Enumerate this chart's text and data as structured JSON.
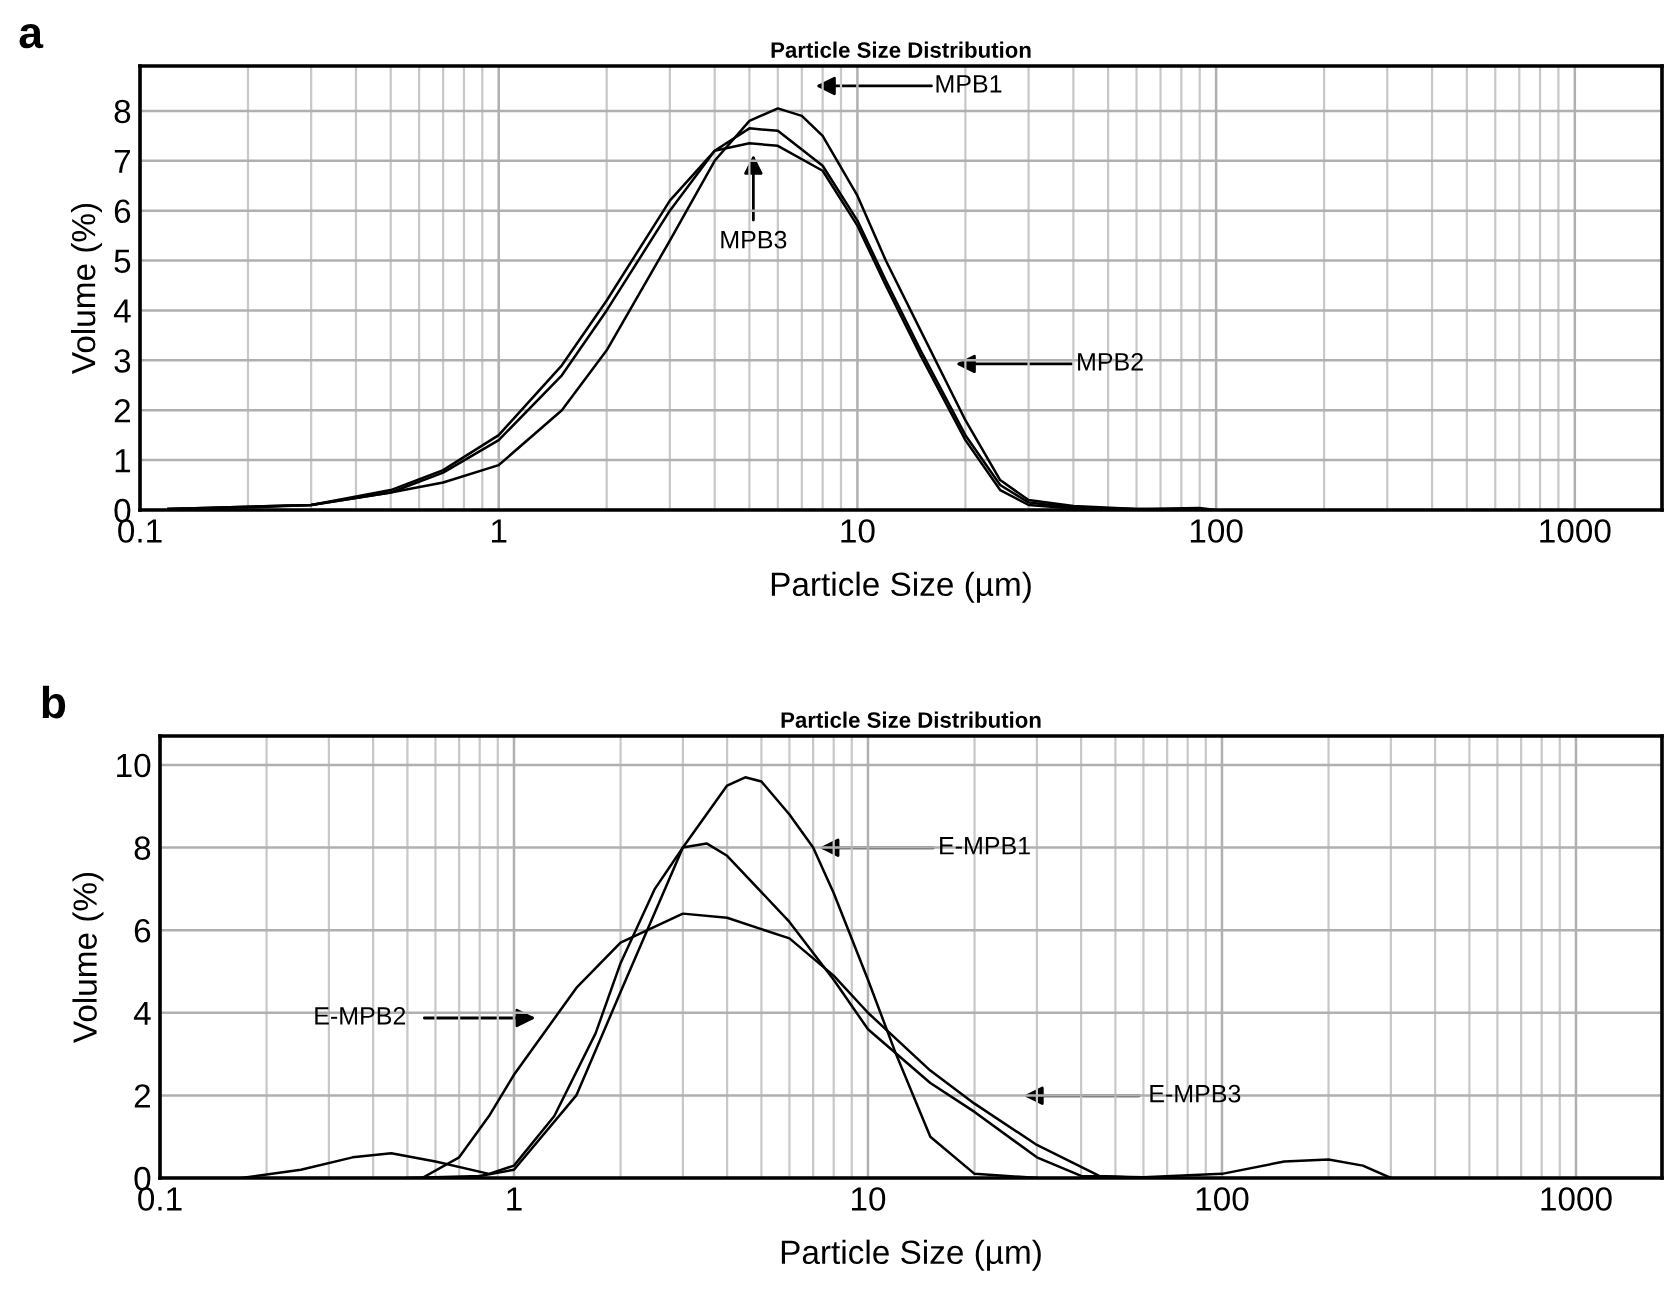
{
  "chart_data": [
    {
      "type": "line",
      "title": "Particle Size Distribution",
      "xlabel": "Particle Size (µm)",
      "ylabel": "Volume (%)",
      "log": "x",
      "grid": true,
      "xlim": [
        0.1,
        1750
      ],
      "xticks": [
        0.1,
        1,
        10,
        100,
        1000
      ],
      "ylim": [
        0,
        8.9
      ],
      "yticks": [
        0,
        1,
        2,
        3,
        4,
        5,
        6,
        7,
        8
      ],
      "series": [
        {
          "color": "#000000",
          "x": [
            0.12,
            0.2,
            0.3,
            0.5,
            0.7,
            1,
            1.5,
            2,
            3,
            4,
            5,
            6,
            7,
            8,
            10,
            12,
            15,
            20,
            25,
            30,
            40,
            60,
            90,
            100
          ],
          "values": [
            0.02,
            0.05,
            0.1,
            0.35,
            0.55,
            0.9,
            2.0,
            3.2,
            5.4,
            7.0,
            7.8,
            8.05,
            7.9,
            7.5,
            6.3,
            5.0,
            3.6,
            1.8,
            0.6,
            0.2,
            0.08,
            0.02,
            0.04,
            0.0
          ]
        },
        {
          "color": "#000000",
          "x": [
            0.12,
            0.3,
            0.5,
            0.7,
            1,
            1.5,
            2,
            3,
            4,
            5,
            6,
            8,
            10,
            12,
            15,
            20,
            25,
            30,
            40,
            60,
            90
          ],
          "values": [
            0.02,
            0.1,
            0.35,
            0.75,
            1.4,
            2.7,
            4.0,
            6.0,
            7.2,
            7.65,
            7.6,
            6.9,
            5.8,
            4.6,
            3.2,
            1.5,
            0.5,
            0.15,
            0.05,
            0.02,
            0.0
          ]
        },
        {
          "color": "#000000",
          "x": [
            0.12,
            0.3,
            0.5,
            0.7,
            1,
            1.5,
            2,
            3,
            4,
            5,
            6,
            8,
            10,
            12,
            15,
            20,
            25,
            30,
            40,
            60
          ],
          "values": [
            0.02,
            0.1,
            0.4,
            0.8,
            1.5,
            2.9,
            4.2,
            6.2,
            7.2,
            7.35,
            7.3,
            6.8,
            5.7,
            4.5,
            3.1,
            1.4,
            0.4,
            0.1,
            0.03,
            0.0
          ]
        }
      ],
      "annotations": [
        "a",
        "MPB1",
        "MPB2",
        "MPB3"
      ]
    },
    {
      "type": "line",
      "title": "Particle Size Distribution",
      "xlabel": "Particle Size (µm)",
      "ylabel": "Volume (%)",
      "log": "x",
      "grid": true,
      "xlim": [
        0.1,
        1750
      ],
      "xticks": [
        0.1,
        1,
        10,
        100,
        1000
      ],
      "ylim": [
        0,
        10.7
      ],
      "yticks": [
        0,
        2,
        4,
        6,
        8,
        10
      ],
      "series": [
        {
          "color": "#000000",
          "x": [
            0.5,
            0.8,
            1,
            1.5,
            2,
            3,
            4,
            4.5,
            5,
            6,
            7,
            8,
            10,
            12,
            15,
            20,
            30
          ],
          "values": [
            0,
            0.05,
            0.2,
            2.0,
            4.5,
            8.0,
            9.5,
            9.7,
            9.6,
            8.8,
            8.0,
            6.9,
            4.8,
            3.0,
            1.0,
            0.1,
            0.0
          ]
        },
        {
          "color": "#000000",
          "x": [
            0.55,
            0.7,
            0.85,
            1,
            1.5,
            2,
            3,
            4,
            6,
            8,
            10,
            15,
            20,
            30,
            45,
            60
          ],
          "values": [
            0,
            0.5,
            1.5,
            2.5,
            4.6,
            5.7,
            6.4,
            6.3,
            5.8,
            4.9,
            4.0,
            2.6,
            1.8,
            0.8,
            0.05,
            0
          ]
        },
        {
          "color": "#000000",
          "x": [
            0.17,
            0.25,
            0.35,
            0.45,
            0.6,
            0.85,
            1,
            1.3,
            1.7,
            2,
            2.5,
            3,
            3.5,
            4,
            6,
            8,
            10,
            15,
            20,
            30,
            40,
            60,
            100,
            150,
            200,
            250,
            300
          ],
          "values": [
            0,
            0.2,
            0.5,
            0.6,
            0.4,
            0.1,
            0.3,
            1.5,
            3.5,
            5.2,
            7.0,
            8.0,
            8.1,
            7.8,
            6.2,
            4.8,
            3.6,
            2.3,
            1.6,
            0.5,
            0.05,
            0.02,
            0.1,
            0.4,
            0.45,
            0.3,
            0.0
          ]
        }
      ],
      "annotations": [
        "b",
        "E-MPB1",
        "E-MPB2",
        "E-MPB3"
      ]
    }
  ]
}
